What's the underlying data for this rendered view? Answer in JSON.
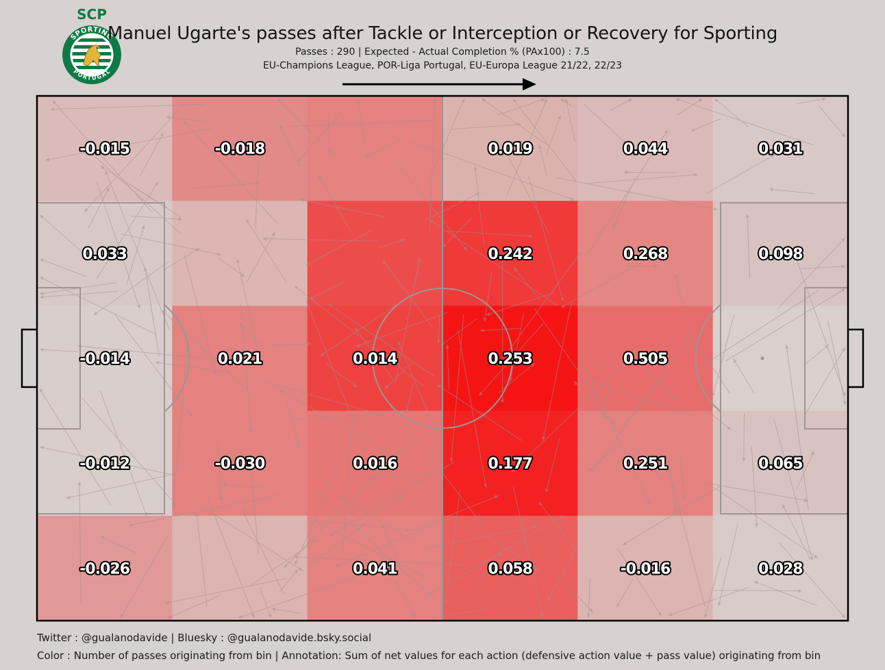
{
  "header": {
    "title": "Manuel Ugarte's passes after Tackle or Interception or Recovery for Sporting",
    "subtitle_line1": "Passes : 290 | Expected - Actual Completion % (PAx100) : 7.5",
    "subtitle_line2": "EU-Champions League, POR-Liga Portugal, EU-Europa League 21/22, 22/23"
  },
  "logo": {
    "top_text": "SCP",
    "ring_text_top": "SPORTING",
    "ring_text_bottom": "PORTUGAL",
    "color_green": "#0f7a45",
    "color_gold": "#e3b43b"
  },
  "footer": {
    "line1": "Twitter : @gualanodavide | Bluesky : @gualanodavide.bsky.social",
    "line2": "Color : Number of passes originating from bin | Annotation: Sum of net values for each action (defensive action value + pass value) originating from bin"
  },
  "colors": {
    "background": "#d7d2cf",
    "heat_low": [
      215,
      210,
      207
    ],
    "heat_high": [
      245,
      20,
      20
    ],
    "line": "#9e9593",
    "arrow": "#a2908e"
  },
  "chart_data": {
    "type": "heatmap",
    "title": "Manuel Ugarte's passes after Tackle or Interception or Recovery for Sporting",
    "columns": 6,
    "rows": 5,
    "attack_direction": "left-to-right",
    "labels": [
      [
        "-0.015",
        "-0.018",
        "",
        "0.019",
        "0.044",
        "0.031"
      ],
      [
        "0.033",
        "",
        "",
        "0.242",
        "0.268",
        "0.098"
      ],
      [
        "-0.014",
        "0.021",
        "0.014",
        "0.253",
        "0.505",
        ""
      ],
      [
        "-0.012",
        "-0.030",
        "0.016",
        "0.177",
        "0.251",
        "0.065"
      ],
      [
        "-0.026",
        "",
        "0.041",
        "0.058",
        "-0.016",
        "0.028"
      ]
    ],
    "intensity": [
      [
        0.12,
        0.38,
        0.42,
        0.17,
        0.13,
        0.05
      ],
      [
        0.05,
        0.15,
        0.7,
        0.8,
        0.4,
        0.08
      ],
      [
        0.02,
        0.42,
        0.76,
        1.0,
        0.53,
        0.01
      ],
      [
        0.02,
        0.42,
        0.48,
        0.93,
        0.42,
        0.08
      ],
      [
        0.3,
        0.16,
        0.42,
        0.6,
        0.16,
        0.03
      ]
    ]
  }
}
